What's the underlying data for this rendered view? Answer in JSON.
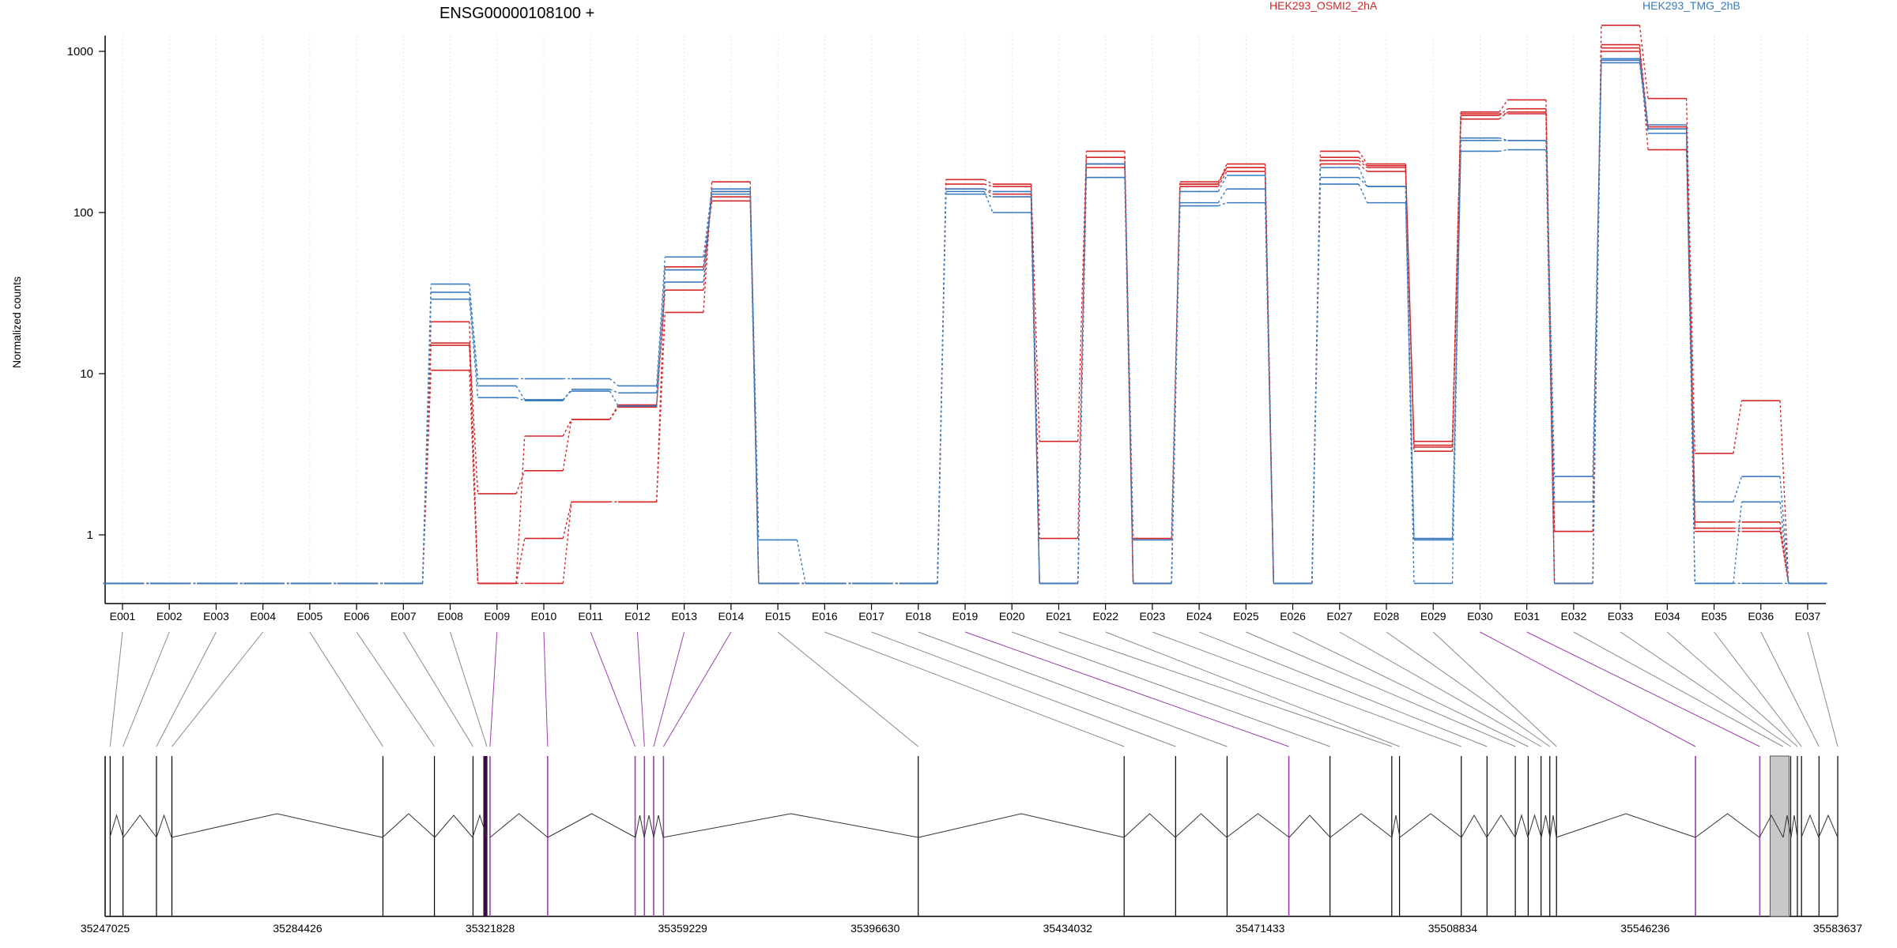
{
  "chart_data": [
    {
      "type": "line",
      "title": "ENSG00000108100 +",
      "xlabel": "",
      "ylabel": "Normalized counts",
      "y_scale": "log",
      "ylim": [
        0.5,
        2000
      ],
      "y_ticks": [
        1,
        10,
        100,
        1000
      ],
      "y_tick_labels": [
        "1",
        "10",
        "100",
        "1000"
      ],
      "grid": "vertical dotted lines at each exon bin",
      "categories": [
        "E001",
        "E002",
        "E003",
        "E004",
        "E005",
        "E006",
        "E007",
        "E008",
        "E009",
        "E010",
        "E011",
        "E012",
        "E013",
        "E014",
        "E015",
        "E016",
        "E017",
        "E018",
        "E019",
        "E020",
        "E021",
        "E022",
        "E023",
        "E024",
        "E025",
        "E026",
        "E027",
        "E028",
        "E029",
        "E030",
        "E031",
        "E032",
        "E033",
        "E034",
        "E035",
        "E036",
        "E037"
      ],
      "legend": [
        {
          "label": "HEK293_OSMI2_2hA",
          "color": "#d62728"
        },
        {
          "label": "HEK293_TMG_2hB",
          "color": "#3a7bbf"
        }
      ],
      "series": [
        {
          "group": "HEK293_OSMI2_2hA",
          "color": "#d62728",
          "values": [
            0.5,
            0.5,
            0.5,
            0.5,
            0.5,
            0.5,
            0.5,
            21,
            0.5,
            0.5,
            1.6,
            1.6,
            24,
            155,
            0.5,
            0.5,
            0.5,
            0.5,
            160,
            150,
            3.8,
            240,
            0.5,
            150,
            200,
            0.5,
            240,
            200,
            3.8,
            420,
            500,
            0.5,
            1450,
            510,
            3.2,
            6.8,
            0.5
          ]
        },
        {
          "group": "HEK293_OSMI2_2hA",
          "color": "#d62728",
          "values": [
            0.5,
            0.5,
            0.5,
            0.5,
            0.5,
            0.5,
            0.5,
            15.5,
            1.8,
            2.5,
            5.2,
            6.4,
            33,
            135,
            0.5,
            0.5,
            0.5,
            0.5,
            150,
            145,
            0.95,
            220,
            0.5,
            155,
            190,
            0.5,
            220,
            195,
            3.5,
            400,
            440,
            1.05,
            1100,
            340,
            1.2,
            1.2,
            0.5
          ]
        },
        {
          "group": "HEK293_OSMI2_2hA",
          "color": "#d62728",
          "values": [
            0.5,
            0.5,
            0.5,
            0.5,
            0.5,
            0.5,
            0.5,
            10.5,
            0.5,
            4.1,
            5.2,
            6.2,
            46,
            125,
            0.5,
            0.5,
            0.5,
            0.5,
            140,
            130,
            0.5,
            200,
            0.95,
            145,
            180,
            0.5,
            210,
            190,
            3.3,
            380,
            420,
            1.05,
            1000,
            330,
            1.05,
            1.05,
            0.5
          ]
        },
        {
          "group": "HEK293_OSMI2_2hA",
          "color": "#d62728",
          "values": [
            0.5,
            0.5,
            0.5,
            0.5,
            0.5,
            0.5,
            0.5,
            15,
            0.5,
            0.95,
            1.6,
            1.6,
            44,
            118,
            0.5,
            0.5,
            0.5,
            0.5,
            130,
            125,
            0.5,
            190,
            0.5,
            150,
            190,
            0.5,
            200,
            180,
            3.6,
            410,
            410,
            0.5,
            1050,
            245,
            1.1,
            1.1,
            0.5
          ]
        },
        {
          "group": "HEK293_TMG_2hB",
          "color": "#3a7bbf",
          "values": [
            0.5,
            0.5,
            0.5,
            0.5,
            0.5,
            0.5,
            0.5,
            36,
            9.3,
            9.3,
            9.3,
            8.4,
            53,
            140,
            0.93,
            0.5,
            0.5,
            0.5,
            140,
            135,
            0.5,
            200,
            0.93,
            135,
            170,
            0.5,
            190,
            145,
            0.93,
            290,
            280,
            2.3,
            900,
            350,
            1.6,
            2.3,
            0.5
          ]
        },
        {
          "group": "HEK293_TMG_2hB",
          "color": "#3a7bbf",
          "values": [
            0.5,
            0.5,
            0.5,
            0.5,
            0.5,
            0.5,
            0.5,
            32,
            8.4,
            6.9,
            7.8,
            6.3,
            37,
            135,
            0.5,
            0.5,
            0.5,
            0.5,
            135,
            100,
            0.5,
            165,
            0.5,
            115,
            140,
            0.5,
            165,
            145,
            0.5,
            280,
            280,
            1.6,
            880,
            330,
            0.5,
            1.6,
            0.5
          ]
        },
        {
          "group": "HEK293_TMG_2hB",
          "color": "#3a7bbf",
          "values": [
            0.5,
            0.5,
            0.5,
            0.5,
            0.5,
            0.5,
            0.5,
            29,
            7.1,
            6.8,
            8.0,
            7.6,
            44,
            130,
            0.5,
            0.5,
            0.5,
            0.5,
            130,
            125,
            0.5,
            165,
            0.5,
            110,
            115,
            0.5,
            150,
            115,
            0.95,
            240,
            245,
            0.5,
            850,
            310,
            0.5,
            0.5,
            0.5
          ]
        }
      ]
    },
    {
      "type": "gene-model",
      "x_ticks": [
        35247025,
        35284426,
        35321828,
        35359229,
        35396630,
        35434032,
        35471433,
        35508834,
        35546236,
        35583637
      ],
      "xlim": [
        35247025,
        35583637
      ],
      "highlighted_bins": [
        "E009",
        "E010",
        "E011",
        "E012",
        "E013",
        "E014",
        "E019",
        "E030",
        "E031"
      ],
      "highlight_color": "#9b3fb0",
      "exon_count": 37
    }
  ]
}
